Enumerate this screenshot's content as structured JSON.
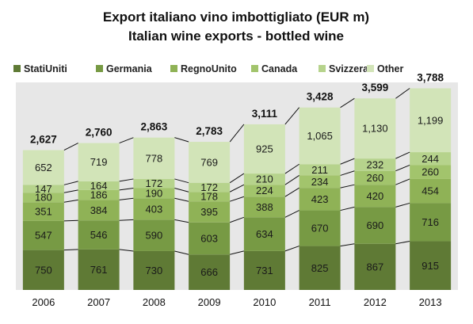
{
  "chart_data": {
    "type": "bar",
    "stacked": true,
    "title": "Export italiano vino imbottigliato (EUR m)",
    "subtitle": "Italian wine exports - bottled wine",
    "categories": [
      "2006",
      "2007",
      "2008",
      "2009",
      "2010",
      "2011",
      "2012",
      "2013"
    ],
    "series": [
      {
        "name": "StatiUniti",
        "color": "#5f7a35",
        "values": [
          750,
          761,
          730,
          666,
          731,
          825,
          867,
          915
        ]
      },
      {
        "name": "Germania",
        "color": "#779a44",
        "values": [
          547,
          546,
          590,
          603,
          634,
          670,
          690,
          716
        ]
      },
      {
        "name": "RegnoUnito",
        "color": "#8fb256",
        "values": [
          351,
          384,
          403,
          395,
          388,
          423,
          420,
          454
        ]
      },
      {
        "name": "Canada",
        "color": "#a2c46c",
        "values": [
          180,
          186,
          190,
          178,
          224,
          234,
          260,
          260
        ]
      },
      {
        "name": "Svizzera",
        "color": "#b6d38c",
        "values": [
          147,
          164,
          172,
          172,
          210,
          211,
          232,
          244
        ]
      },
      {
        "name": "Other",
        "color": "#d2e4b8",
        "values": [
          652,
          719,
          778,
          769,
          925,
          1065,
          1130,
          1199
        ]
      }
    ],
    "totals": [
      "2,627",
      "2,760",
      "2,863",
      "2,783",
      "3,111",
      "3,428",
      "3,599",
      "3,788"
    ],
    "connector_lines": true,
    "ylim": [
      0,
      3900
    ],
    "legend_position": "top",
    "plot_background": "#e7e7e7",
    "grid": false
  }
}
